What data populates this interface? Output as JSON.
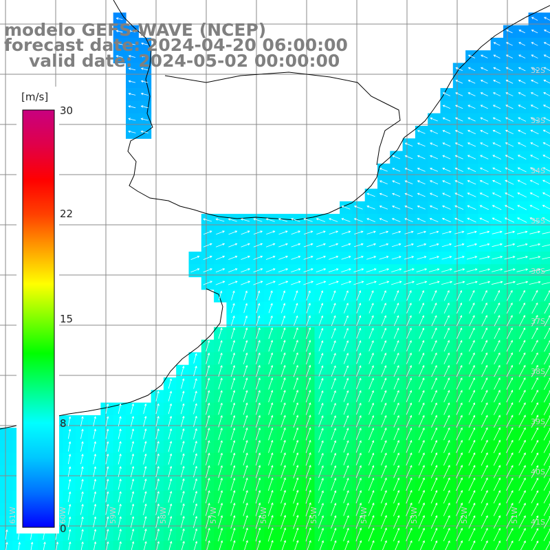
{
  "title": {
    "model": "modelo GEFS-WAVE (NCEP)",
    "forecast": "forecast date: 2024-04-20 06:00:00",
    "valid": "valid date: 2024-05-02 00:00:00"
  },
  "colorbar": {
    "units": "[m/s]",
    "ticks": [
      "0",
      "8",
      "15",
      "22",
      "30"
    ],
    "min": 0,
    "max": 30,
    "colors": [
      "#0000ff",
      "#0070ff",
      "#00c8ff",
      "#00ffff",
      "#00ff80",
      "#00ff00",
      "#80ff00",
      "#ffff00",
      "#ffa000",
      "#ff4000",
      "#ff0000",
      "#e0004a",
      "#c80080"
    ]
  },
  "map": {
    "lat_labels": [
      "32S",
      "33S",
      "34S",
      "35S",
      "36S",
      "37S",
      "38S",
      "39S",
      "40S",
      "41S"
    ],
    "lon_labels": [
      "61W",
      "60W",
      "59W",
      "58W",
      "57W",
      "56W",
      "55W",
      "54W",
      "53W",
      "52W",
      "51W"
    ],
    "land_color": "#ffffff",
    "grid_color": "#888888",
    "arrow_color": "#ffffff"
  }
}
